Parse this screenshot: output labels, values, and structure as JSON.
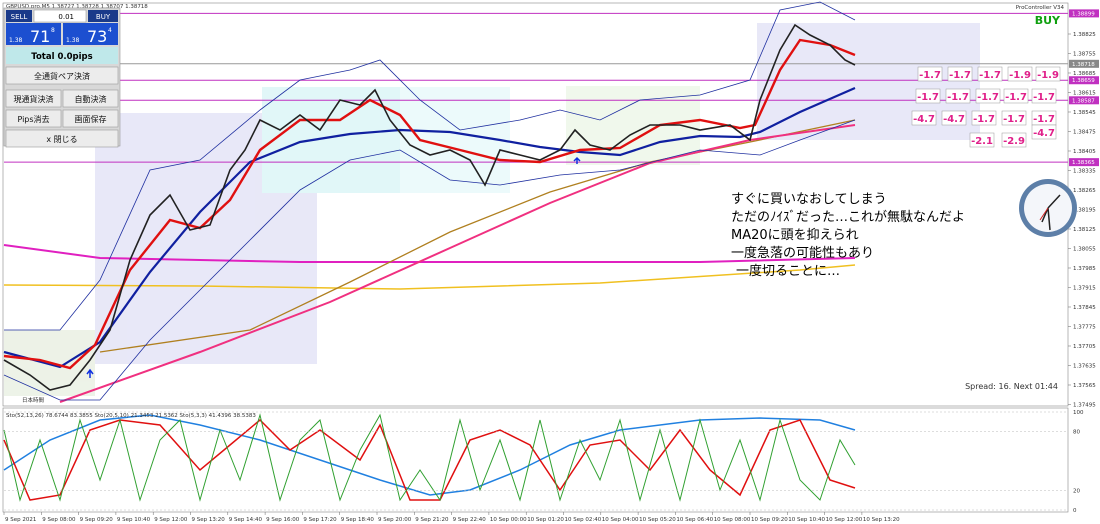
{
  "header": {
    "symbol_info": "GBPUSD.pro,M5  1.38727 1.38728 1.38707 1.38718",
    "indicator_name": "ProController V34",
    "signal": "BUY"
  },
  "panel": {
    "sell": "SELL",
    "lot": "0.01",
    "buy": "BUY",
    "bid": {
      "prefix": "1.38",
      "big": "71",
      "sup": "8"
    },
    "ask": {
      "prefix": "1.38",
      "big": "73",
      "sup": "4"
    },
    "total": "Total   0.0pips",
    "buttons": [
      "全通貨ペア決済",
      "現通貨決済",
      "自動決済",
      "Pips消去",
      "画面保存",
      "x 閉じる"
    ]
  },
  "price_axis": {
    "ticks": [
      1.38825,
      1.38755,
      1.38685,
      1.38615,
      1.38545,
      1.38475,
      1.38405,
      1.38335,
      1.38265,
      1.38195,
      1.38125,
      1.38055,
      1.37985,
      1.37915,
      1.37845,
      1.37775,
      1.37705,
      1.37635,
      1.37565,
      1.37495
    ],
    "levels": [
      1.38899,
      1.38718,
      1.38659,
      1.38587,
      1.38365
    ]
  },
  "pips_rows": [
    [
      -1.7,
      -1.7,
      -1.7,
      -1.9,
      -1.9
    ],
    [
      -1.7,
      -1.7,
      -1.7,
      -1.7,
      -1.7
    ],
    [
      -4.7,
      -4.7,
      -1.7,
      -1.7,
      -1.7
    ],
    [
      -2.1,
      -2.9,
      -4.7
    ]
  ],
  "annotation": [
    "すぐに買いなおしてしまう",
    "ただのﾉｲｽﾞだった…これが無駄なんだよ",
    "MA20に頭を抑えられ",
    "一度急落の可能性もあり",
    "一度切ることに…"
  ],
  "spread": "Spread: 16. Next 01:44",
  "timezone_label": "日本時間",
  "oscillator": {
    "header": "Sto(52,13,26) 78.6744 83.3855  Sto(20,5,10) 21.3453 21.5362  Sto(5,3,3) 41.4396 38.5383",
    "ticks": [
      100,
      80,
      20,
      0
    ]
  },
  "time_axis": [
    "9 Sep 2021",
    "9 Sep 08:00",
    "9 Sep 09:20",
    "9 Sep 10:40",
    "9 Sep 12:00",
    "9 Sep 13:20",
    "9 Sep 14:40",
    "9 Sep 16:00",
    "9 Sep 17:20",
    "9 Sep 18:40",
    "9 Sep 20:00",
    "9 Sep 21:20",
    "9 Sep 22:40",
    "10 Sep 00:00",
    "10 Sep 01:20",
    "10 Sep 02:40",
    "10 Sep 04:00",
    "10 Sep 05:20",
    "10 Sep 06:40",
    "10 Sep 08:00",
    "10 Sep 09:20",
    "10 Sep 10:40",
    "10 Sep 12:00",
    "10 Sep 13:20"
  ]
}
